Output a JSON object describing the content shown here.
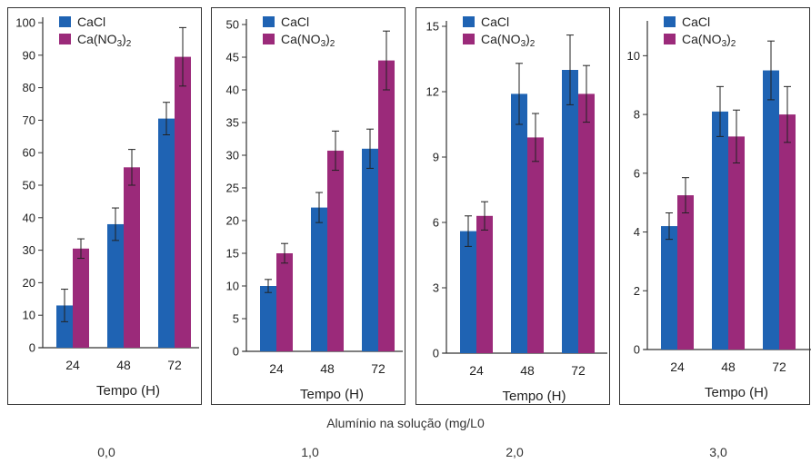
{
  "shared_xlabel": "Alumínio na solução (mg/L0",
  "colors": {
    "CaCl": "#1f63b3",
    "Ca(NO3)2": "#9b2a7a",
    "axis": "#333333"
  },
  "chart_data": [
    {
      "type": "bar",
      "concentration_label": "0,0",
      "xlabel": "Tempo (H)",
      "ylabel": "",
      "ylim": [
        0,
        100
      ],
      "yticks": [
        0,
        10,
        20,
        30,
        40,
        50,
        60,
        70,
        80,
        90,
        100
      ],
      "categories": [
        "24",
        "48",
        "72"
      ],
      "legend": [
        "CaCl",
        "Ca(NO3)2"
      ],
      "series": [
        {
          "name": "CaCl",
          "values": [
            13,
            38,
            70.5
          ],
          "errors": [
            5,
            5,
            5
          ]
        },
        {
          "name": "Ca(NO3)2",
          "values": [
            30.5,
            55.5,
            89.5
          ],
          "errors": [
            3,
            5.5,
            9
          ]
        }
      ]
    },
    {
      "type": "bar",
      "concentration_label": "1,0",
      "xlabel": "Tempo (H)",
      "ylabel": "",
      "ylim": [
        0,
        50
      ],
      "yticks": [
        0,
        5,
        10,
        15,
        20,
        25,
        30,
        35,
        40,
        45,
        50
      ],
      "categories": [
        "24",
        "48",
        "72"
      ],
      "legend": [
        "CaCl",
        "Ca(NO3)2"
      ],
      "series": [
        {
          "name": "CaCl",
          "values": [
            10,
            22,
            31
          ],
          "errors": [
            1,
            2.3,
            3
          ]
        },
        {
          "name": "Ca(NO3)2",
          "values": [
            15,
            30.7,
            44.5
          ],
          "errors": [
            1.5,
            3,
            4.5
          ]
        }
      ]
    },
    {
      "type": "bar",
      "concentration_label": "2,0",
      "xlabel": "Tempo (H)",
      "ylabel": "",
      "ylim": [
        0,
        15
      ],
      "yticks": [
        0,
        3,
        6,
        9,
        12,
        15
      ],
      "categories": [
        "24",
        "48",
        "72"
      ],
      "legend": [
        "CaCl",
        "Ca(NO3)2"
      ],
      "series": [
        {
          "name": "CaCl",
          "values": [
            5.6,
            11.9,
            13
          ],
          "errors": [
            0.7,
            1.4,
            1.6
          ]
        },
        {
          "name": "Ca(NO3)2",
          "values": [
            6.3,
            9.9,
            11.9
          ],
          "errors": [
            0.65,
            1.1,
            1.3
          ]
        }
      ]
    },
    {
      "type": "bar",
      "concentration_label": "3,0",
      "xlabel": "Tempo (H)",
      "ylabel": "",
      "ylim": [
        0,
        11
      ],
      "yticks": [
        0,
        2,
        4,
        6,
        8,
        10
      ],
      "categories": [
        "24",
        "48",
        "72"
      ],
      "legend": [
        "CaCl",
        "Ca(NO3)2"
      ],
      "series": [
        {
          "name": "CaCl",
          "values": [
            4.2,
            8.1,
            9.5
          ],
          "errors": [
            0.45,
            0.85,
            1.0
          ]
        },
        {
          "name": "Ca(NO3)2",
          "values": [
            5.25,
            7.25,
            8.0
          ],
          "errors": [
            0.6,
            0.9,
            0.95
          ]
        }
      ]
    }
  ]
}
